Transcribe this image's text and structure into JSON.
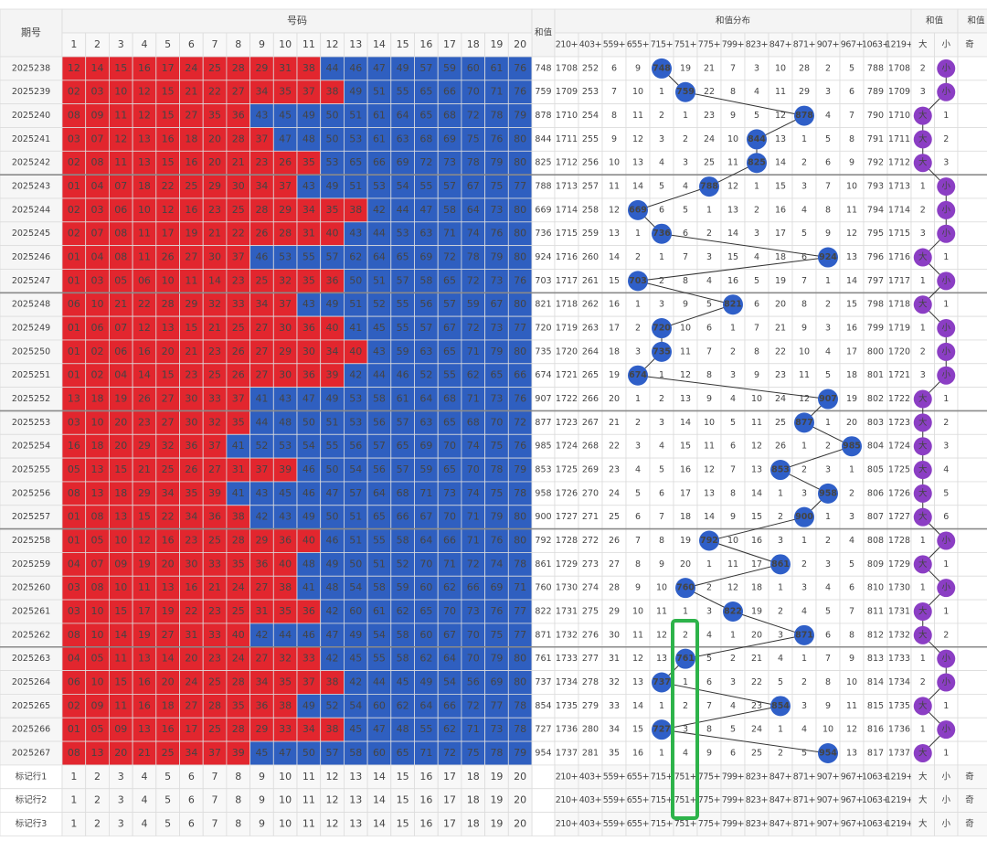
{
  "header": {
    "issue": "期号",
    "numbers_title": "号码",
    "sum": "和值",
    "dist_title": "和值分布",
    "size_title": "和值",
    "parity_title": "和值",
    "numbers": [
      1,
      2,
      3,
      4,
      5,
      6,
      7,
      8,
      9,
      10,
      11,
      12,
      13,
      14,
      15,
      16,
      17,
      18,
      19,
      20
    ],
    "dist": [
      "210+",
      "403+",
      "559+",
      "655+",
      "715+",
      "751+",
      "775+",
      "799+",
      "823+",
      "847+",
      "871+",
      "907+",
      "967+",
      "1063+",
      "1219+"
    ],
    "size": [
      "大",
      "小"
    ],
    "parity": "奇"
  },
  "rows": [
    {
      "issue": "2025238",
      "red": [
        "12",
        "14",
        "15",
        "16",
        "17",
        "24",
        "25",
        "28",
        "29",
        "31",
        "38"
      ],
      "blue": [
        "44",
        "46",
        "47",
        "49",
        "57",
        "59",
        "60",
        "61",
        "76"
      ],
      "sum": 748,
      "dist": [
        1708,
        252,
        6,
        9,
        748,
        19,
        21,
        7,
        3,
        10,
        28,
        2,
        5,
        788,
        1708
      ],
      "size": [
        2,
        "小"
      ]
    },
    {
      "issue": "2025239",
      "red": [
        "02",
        "03",
        "10",
        "12",
        "15",
        "21",
        "22",
        "27",
        "34",
        "35",
        "37",
        "38"
      ],
      "blue": [
        "49",
        "51",
        "55",
        "65",
        "66",
        "70",
        "71",
        "76"
      ],
      "sum": 759,
      "dist": [
        1709,
        253,
        7,
        10,
        1,
        759,
        22,
        8,
        4,
        11,
        29,
        3,
        6,
        789,
        1709
      ],
      "size": [
        3,
        "小"
      ]
    },
    {
      "issue": "2025240",
      "red": [
        "08",
        "09",
        "11",
        "12",
        "15",
        "27",
        "35",
        "36"
      ],
      "blue": [
        "43",
        "45",
        "49",
        "50",
        "51",
        "61",
        "64",
        "65",
        "68",
        "72",
        "78",
        "79"
      ],
      "sum": 878,
      "dist": [
        1710,
        254,
        8,
        11,
        2,
        1,
        23,
        9,
        5,
        12,
        878,
        4,
        7,
        790,
        1710
      ],
      "size": [
        "大",
        1
      ]
    },
    {
      "issue": "2025241",
      "red": [
        "03",
        "07",
        "12",
        "13",
        "16",
        "18",
        "20",
        "28",
        "37"
      ],
      "blue": [
        "47",
        "48",
        "50",
        "53",
        "61",
        "63",
        "68",
        "69",
        "75",
        "76",
        "80"
      ],
      "sum": 844,
      "dist": [
        1711,
        255,
        9,
        12,
        3,
        2,
        24,
        10,
        844,
        13,
        1,
        5,
        8,
        791,
        1711
      ],
      "size": [
        "大",
        2
      ]
    },
    {
      "issue": "2025242",
      "red": [
        "02",
        "08",
        "11",
        "13",
        "15",
        "16",
        "20",
        "21",
        "23",
        "26",
        "35"
      ],
      "blue": [
        "53",
        "65",
        "66",
        "69",
        "72",
        "73",
        "78",
        "79",
        "80"
      ],
      "sum": 825,
      "dist": [
        1712,
        256,
        10,
        13,
        4,
        3,
        25,
        11,
        825,
        14,
        2,
        6,
        9,
        792,
        1712
      ],
      "size": [
        "大",
        3
      ]
    },
    {
      "issue": "2025243",
      "red": [
        "01",
        "04",
        "07",
        "18",
        "22",
        "25",
        "29",
        "30",
        "34",
        "37"
      ],
      "blue": [
        "43",
        "49",
        "51",
        "53",
        "54",
        "55",
        "57",
        "67",
        "75",
        "77"
      ],
      "sum": 788,
      "dist": [
        1713,
        257,
        11,
        14,
        5,
        4,
        788,
        12,
        1,
        15,
        3,
        7,
        10,
        793,
        1713
      ],
      "size": [
        1,
        "小"
      ]
    },
    {
      "issue": "2025244",
      "red": [
        "02",
        "03",
        "06",
        "10",
        "12",
        "16",
        "23",
        "25",
        "28",
        "29",
        "34",
        "35",
        "38"
      ],
      "blue": [
        "42",
        "44",
        "47",
        "58",
        "64",
        "73",
        "80"
      ],
      "sum": 669,
      "dist": [
        1714,
        258,
        12,
        669,
        6,
        5,
        1,
        13,
        2,
        16,
        4,
        8,
        11,
        794,
        1714
      ],
      "size": [
        2,
        "小"
      ]
    },
    {
      "issue": "2025245",
      "red": [
        "02",
        "07",
        "08",
        "11",
        "17",
        "19",
        "21",
        "22",
        "26",
        "28",
        "31",
        "40"
      ],
      "blue": [
        "43",
        "44",
        "53",
        "63",
        "71",
        "74",
        "76",
        "80"
      ],
      "sum": 736,
      "dist": [
        1715,
        259,
        13,
        1,
        736,
        6,
        2,
        14,
        3,
        17,
        5,
        9,
        12,
        795,
        1715
      ],
      "size": [
        3,
        "小"
      ]
    },
    {
      "issue": "2025246",
      "red": [
        "01",
        "04",
        "08",
        "11",
        "26",
        "27",
        "30",
        "37"
      ],
      "blue": [
        "46",
        "53",
        "55",
        "57",
        "62",
        "64",
        "65",
        "69",
        "72",
        "78",
        "79",
        "80"
      ],
      "sum": 924,
      "dist": [
        1716,
        260,
        14,
        2,
        1,
        7,
        3,
        15,
        4,
        18,
        6,
        924,
        13,
        796,
        1716
      ],
      "size": [
        "大",
        1
      ]
    },
    {
      "issue": "2025247",
      "red": [
        "01",
        "03",
        "05",
        "06",
        "10",
        "11",
        "14",
        "23",
        "25",
        "32",
        "35",
        "36"
      ],
      "blue": [
        "50",
        "51",
        "57",
        "58",
        "65",
        "72",
        "73",
        "76"
      ],
      "sum": 703,
      "dist": [
        1717,
        261,
        15,
        703,
        2,
        8,
        4,
        16,
        5,
        19,
        7,
        1,
        14,
        797,
        1717
      ],
      "size": [
        1,
        "小"
      ]
    },
    {
      "issue": "2025248",
      "red": [
        "06",
        "10",
        "21",
        "22",
        "28",
        "29",
        "32",
        "33",
        "34",
        "37"
      ],
      "blue": [
        "43",
        "49",
        "51",
        "52",
        "55",
        "56",
        "57",
        "59",
        "67",
        "80"
      ],
      "sum": 821,
      "dist": [
        1718,
        262,
        16,
        1,
        3,
        9,
        5,
        821,
        6,
        20,
        8,
        2,
        15,
        798,
        1718
      ],
      "size": [
        "大",
        1
      ]
    },
    {
      "issue": "2025249",
      "red": [
        "01",
        "06",
        "07",
        "12",
        "13",
        "15",
        "21",
        "25",
        "27",
        "30",
        "36",
        "40"
      ],
      "blue": [
        "41",
        "45",
        "55",
        "57",
        "67",
        "72",
        "73",
        "77"
      ],
      "sum": 720,
      "dist": [
        1719,
        263,
        17,
        2,
        720,
        10,
        6,
        1,
        7,
        21,
        9,
        3,
        16,
        799,
        1719
      ],
      "size": [
        1,
        "小"
      ]
    },
    {
      "issue": "2025250",
      "red": [
        "01",
        "02",
        "06",
        "16",
        "20",
        "21",
        "23",
        "26",
        "27",
        "29",
        "30",
        "34",
        "40"
      ],
      "blue": [
        "43",
        "59",
        "63",
        "65",
        "71",
        "79",
        "80"
      ],
      "sum": 735,
      "dist": [
        1720,
        264,
        18,
        3,
        735,
        11,
        7,
        2,
        8,
        22,
        10,
        4,
        17,
        800,
        1720
      ],
      "size": [
        2,
        "小"
      ]
    },
    {
      "issue": "2025251",
      "red": [
        "01",
        "02",
        "04",
        "14",
        "15",
        "23",
        "25",
        "26",
        "27",
        "30",
        "36",
        "39"
      ],
      "blue": [
        "42",
        "44",
        "46",
        "52",
        "55",
        "62",
        "65",
        "66"
      ],
      "sum": 674,
      "dist": [
        1721,
        265,
        19,
        674,
        1,
        12,
        8,
        3,
        9,
        23,
        11,
        5,
        18,
        801,
        1721
      ],
      "size": [
        3,
        "小"
      ]
    },
    {
      "issue": "2025252",
      "red": [
        "13",
        "18",
        "19",
        "26",
        "27",
        "30",
        "33",
        "37"
      ],
      "blue": [
        "41",
        "43",
        "47",
        "49",
        "53",
        "58",
        "61",
        "64",
        "68",
        "71",
        "73",
        "76"
      ],
      "sum": 907,
      "dist": [
        1722,
        266,
        20,
        1,
        2,
        13,
        9,
        4,
        10,
        24,
        12,
        907,
        19,
        802,
        1722
      ],
      "size": [
        "大",
        1
      ]
    },
    {
      "issue": "2025253",
      "red": [
        "03",
        "10",
        "20",
        "23",
        "27",
        "30",
        "32",
        "35"
      ],
      "blue": [
        "44",
        "48",
        "50",
        "51",
        "53",
        "56",
        "57",
        "63",
        "65",
        "68",
        "70",
        "72"
      ],
      "sum": 877,
      "dist": [
        1723,
        267,
        21,
        2,
        3,
        14,
        10,
        5,
        11,
        25,
        877,
        1,
        20,
        803,
        1723
      ],
      "size": [
        "大",
        2
      ]
    },
    {
      "issue": "2025254",
      "red": [
        "16",
        "18",
        "20",
        "29",
        "32",
        "36",
        "37"
      ],
      "blue": [
        "41",
        "52",
        "53",
        "54",
        "55",
        "56",
        "57",
        "65",
        "69",
        "70",
        "74",
        "75",
        "76"
      ],
      "sum": 985,
      "dist": [
        1724,
        268,
        22,
        3,
        4,
        15,
        11,
        6,
        12,
        26,
        1,
        2,
        985,
        804,
        1724
      ],
      "size": [
        "大",
        3
      ]
    },
    {
      "issue": "2025255",
      "red": [
        "05",
        "13",
        "15",
        "21",
        "25",
        "26",
        "27",
        "31",
        "37",
        "39"
      ],
      "blue": [
        "46",
        "50",
        "54",
        "56",
        "57",
        "59",
        "65",
        "70",
        "78",
        "79"
      ],
      "sum": 853,
      "dist": [
        1725,
        269,
        23,
        4,
        5,
        16,
        12,
        7,
        13,
        853,
        2,
        3,
        1,
        805,
        1725
      ],
      "size": [
        "大",
        4
      ]
    },
    {
      "issue": "2025256",
      "red": [
        "08",
        "13",
        "18",
        "29",
        "34",
        "35",
        "39"
      ],
      "blue": [
        "41",
        "43",
        "45",
        "46",
        "47",
        "57",
        "64",
        "68",
        "71",
        "73",
        "74",
        "75",
        "78"
      ],
      "sum": 958,
      "dist": [
        1726,
        270,
        24,
        5,
        6,
        17,
        13,
        8,
        14,
        1,
        3,
        958,
        2,
        806,
        1726
      ],
      "size": [
        "大",
        5
      ]
    },
    {
      "issue": "2025257",
      "red": [
        "01",
        "08",
        "13",
        "15",
        "22",
        "34",
        "36",
        "38"
      ],
      "blue": [
        "42",
        "43",
        "49",
        "50",
        "51",
        "65",
        "66",
        "67",
        "70",
        "71",
        "79",
        "80"
      ],
      "sum": 900,
      "dist": [
        1727,
        271,
        25,
        6,
        7,
        18,
        14,
        9,
        15,
        2,
        900,
        1,
        3,
        807,
        1727
      ],
      "size": [
        "大",
        6
      ]
    },
    {
      "issue": "2025258",
      "red": [
        "01",
        "05",
        "10",
        "12",
        "16",
        "23",
        "25",
        "28",
        "29",
        "36",
        "40"
      ],
      "blue": [
        "46",
        "51",
        "55",
        "58",
        "64",
        "66",
        "71",
        "76",
        "80"
      ],
      "sum": 792,
      "dist": [
        1728,
        272,
        26,
        7,
        8,
        19,
        792,
        10,
        16,
        3,
        1,
        2,
        4,
        808,
        1728
      ],
      "size": [
        1,
        "小"
      ]
    },
    {
      "issue": "2025259",
      "red": [
        "04",
        "07",
        "09",
        "19",
        "20",
        "30",
        "33",
        "35",
        "36",
        "40"
      ],
      "blue": [
        "48",
        "49",
        "50",
        "51",
        "52",
        "70",
        "71",
        "72",
        "74",
        "78"
      ],
      "sum": 861,
      "dist": [
        1729,
        273,
        27,
        8,
        9,
        20,
        1,
        11,
        17,
        861,
        2,
        3,
        5,
        809,
        1729
      ],
      "size": [
        "大",
        1
      ]
    },
    {
      "issue": "2025260",
      "red": [
        "03",
        "08",
        "10",
        "11",
        "13",
        "16",
        "21",
        "24",
        "27",
        "38"
      ],
      "blue": [
        "41",
        "48",
        "54",
        "58",
        "59",
        "60",
        "62",
        "66",
        "69",
        "71"
      ],
      "sum": 760,
      "dist": [
        1730,
        274,
        28,
        9,
        10,
        760,
        2,
        12,
        18,
        1,
        3,
        4,
        6,
        810,
        1730
      ],
      "size": [
        1,
        "小"
      ]
    },
    {
      "issue": "2025261",
      "red": [
        "03",
        "10",
        "15",
        "17",
        "19",
        "22",
        "23",
        "25",
        "31",
        "35",
        "36"
      ],
      "blue": [
        "42",
        "60",
        "61",
        "62",
        "65",
        "70",
        "73",
        "76",
        "77"
      ],
      "sum": 822,
      "dist": [
        1731,
        275,
        29,
        10,
        11,
        1,
        3,
        822,
        19,
        2,
        4,
        5,
        7,
        811,
        1731
      ],
      "size": [
        "大",
        1
      ]
    },
    {
      "issue": "2025262",
      "red": [
        "08",
        "10",
        "14",
        "19",
        "27",
        "31",
        "33",
        "40"
      ],
      "blue": [
        "42",
        "44",
        "46",
        "47",
        "49",
        "54",
        "58",
        "60",
        "67",
        "70",
        "75",
        "77"
      ],
      "sum": 871,
      "dist": [
        1732,
        276,
        30,
        11,
        12,
        2,
        4,
        1,
        20,
        3,
        871,
        6,
        8,
        812,
        1732
      ],
      "size": [
        "大",
        2
      ]
    },
    {
      "issue": "2025263",
      "red": [
        "04",
        "05",
        "11",
        "13",
        "14",
        "20",
        "23",
        "24",
        "27",
        "32",
        "33"
      ],
      "blue": [
        "42",
        "45",
        "55",
        "58",
        "62",
        "64",
        "70",
        "79",
        "80"
      ],
      "sum": 761,
      "dist": [
        1733,
        277,
        31,
        12,
        13,
        761,
        5,
        2,
        21,
        4,
        1,
        7,
        9,
        813,
        1733
      ],
      "size": [
        1,
        "小"
      ]
    },
    {
      "issue": "2025264",
      "red": [
        "06",
        "10",
        "15",
        "16",
        "20",
        "24",
        "25",
        "28",
        "34",
        "35",
        "37",
        "38"
      ],
      "blue": [
        "42",
        "44",
        "45",
        "49",
        "54",
        "56",
        "69",
        "80"
      ],
      "sum": 737,
      "dist": [
        1734,
        278,
        32,
        13,
        737,
        1,
        6,
        3,
        22,
        5,
        2,
        8,
        10,
        814,
        1734
      ],
      "size": [
        2,
        "小"
      ]
    },
    {
      "issue": "2025265",
      "red": [
        "02",
        "09",
        "11",
        "16",
        "18",
        "27",
        "28",
        "35",
        "36",
        "38"
      ],
      "blue": [
        "49",
        "52",
        "54",
        "60",
        "62",
        "64",
        "66",
        "72",
        "77",
        "78"
      ],
      "sum": 854,
      "dist": [
        1735,
        279,
        33,
        14,
        1,
        2,
        7,
        4,
        23,
        854,
        3,
        9,
        11,
        815,
        1735
      ],
      "size": [
        "大",
        1
      ]
    },
    {
      "issue": "2025266",
      "red": [
        "01",
        "05",
        "09",
        "13",
        "16",
        "17",
        "25",
        "28",
        "29",
        "33",
        "34",
        "38"
      ],
      "blue": [
        "45",
        "47",
        "48",
        "55",
        "62",
        "71",
        "73",
        "78"
      ],
      "sum": 727,
      "dist": [
        1736,
        280,
        34,
        15,
        727,
        3,
        8,
        5,
        24,
        1,
        4,
        10,
        12,
        816,
        1736
      ],
      "size": [
        1,
        "小"
      ]
    },
    {
      "issue": "2025267",
      "red": [
        "08",
        "13",
        "20",
        "21",
        "25",
        "34",
        "37",
        "39"
      ],
      "blue": [
        "45",
        "47",
        "50",
        "57",
        "58",
        "60",
        "65",
        "71",
        "72",
        "75",
        "78",
        "79"
      ],
      "sum": 954,
      "dist": [
        1737,
        281,
        35,
        16,
        1,
        4,
        9,
        6,
        25,
        2,
        5,
        954,
        13,
        817,
        1737
      ],
      "size": [
        "大",
        1
      ]
    }
  ],
  "footer": [
    "标记行1",
    "标记行2",
    "标记行3"
  ]
}
